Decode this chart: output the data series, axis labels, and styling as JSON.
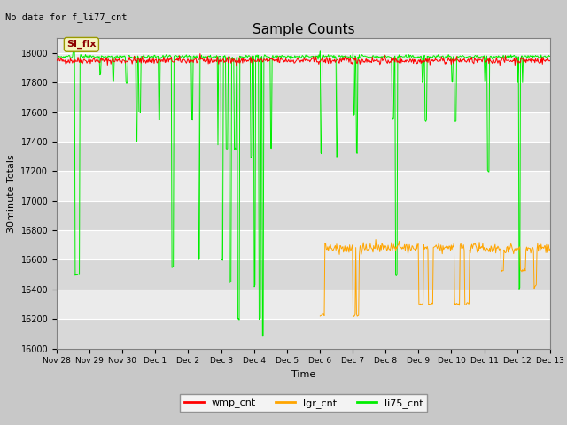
{
  "title": "Sample Counts",
  "xlabel": "Time",
  "ylabel": "30minute Totals",
  "no_data_label": "No data for f_li77_cnt",
  "annotation_text": "SI_flx",
  "ylim": [
    16000,
    18100
  ],
  "yticks": [
    16000,
    16200,
    16400,
    16600,
    16800,
    17000,
    17200,
    17400,
    17600,
    17800,
    18000
  ],
  "xtick_labels": [
    "Nov 28",
    "Nov 29",
    "Nov 30",
    "Dec 1",
    "Dec 2",
    "Dec 3",
    "Dec 4",
    "Dec 5",
    "Dec 6",
    "Dec 7",
    "Dec 8",
    "Dec 9",
    "Dec 10",
    "Dec 11",
    "Dec 12",
    "Dec 13"
  ],
  "wmp_color": "#ff0000",
  "lgr_color": "#ffa500",
  "li75_color": "#00ee00",
  "fig_bg_color": "#c8c8c8",
  "plot_bg_color": "#e8e8e8",
  "band_dark": "#d8d8d8",
  "band_light": "#ebebeb",
  "legend_entries": [
    "wmp_cnt",
    "lgr_cnt",
    "li75_cnt"
  ]
}
